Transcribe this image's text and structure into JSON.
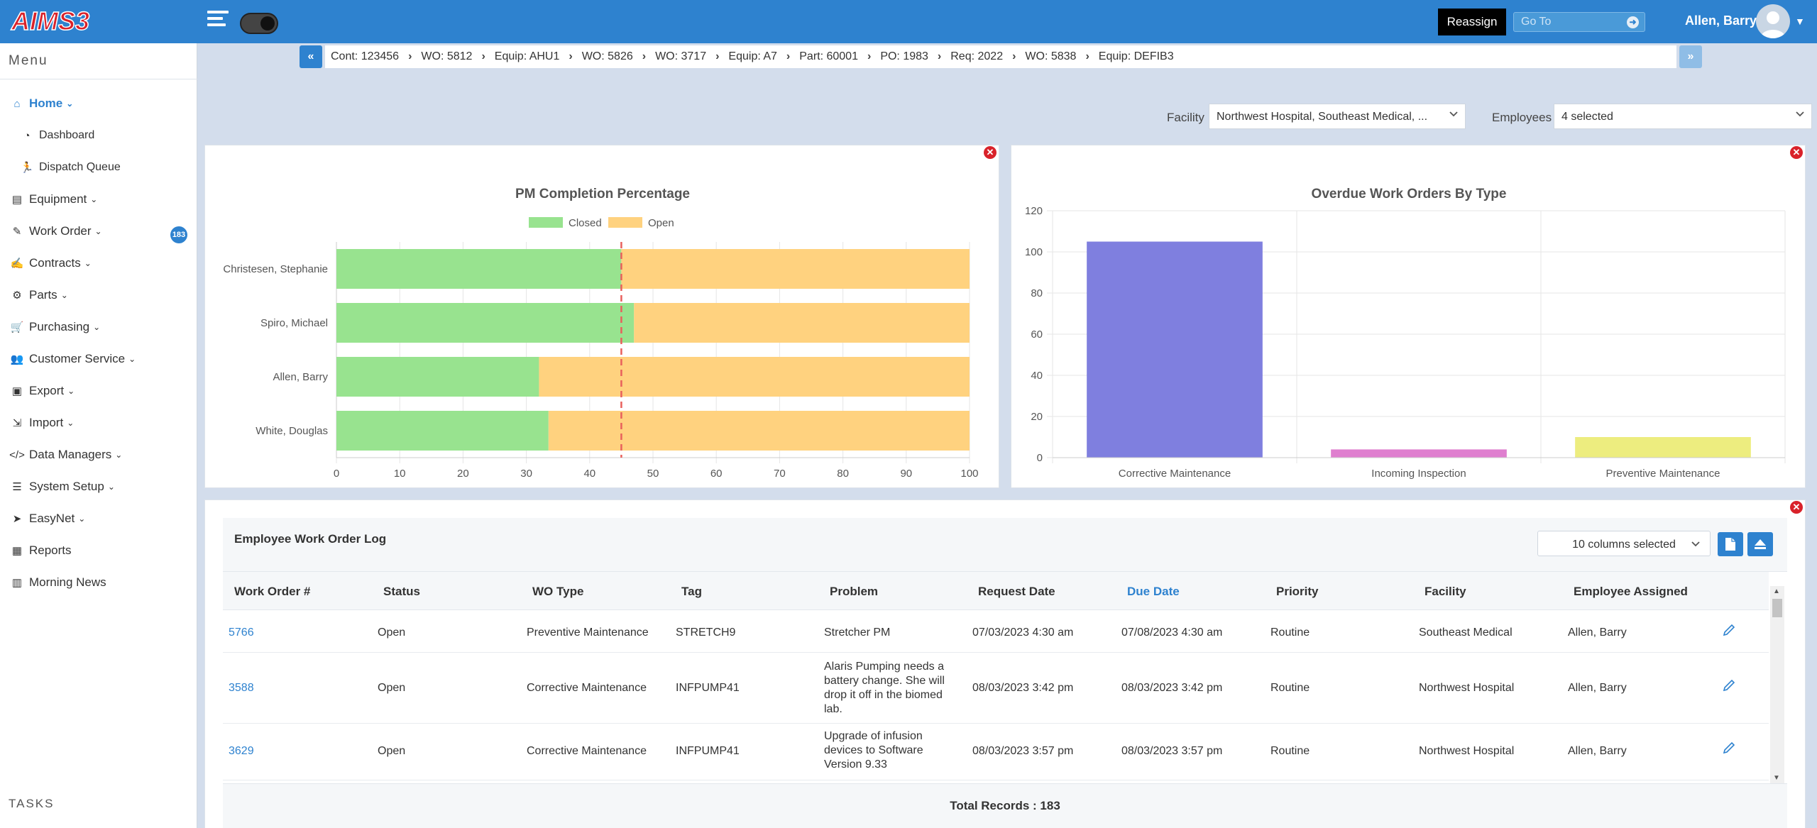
{
  "app": {
    "logo_text": "AIMS3",
    "reassign_label": "Reassign",
    "goto_placeholder": "Go To",
    "user_name": "Allen, Barry"
  },
  "sidebar": {
    "menu_title": "Menu",
    "tasks_title": "TASKS",
    "items": [
      {
        "label": "Home",
        "icon": "home-icon"
      },
      {
        "label": "Dashboard",
        "icon": "dashboard-icon"
      },
      {
        "label": "Dispatch Queue",
        "icon": "running-person-icon"
      },
      {
        "label": "Equipment",
        "icon": "equipment-icon"
      },
      {
        "label": "Work Order",
        "icon": "edit-icon",
        "badge": "183"
      },
      {
        "label": "Contracts",
        "icon": "contract-icon"
      },
      {
        "label": "Parts",
        "icon": "cogs-icon"
      },
      {
        "label": "Purchasing",
        "icon": "cart-icon"
      },
      {
        "label": "Customer Service",
        "icon": "users-icon"
      },
      {
        "label": "Export",
        "icon": "export-icon"
      },
      {
        "label": "Import",
        "icon": "import-icon"
      },
      {
        "label": "Data Managers",
        "icon": "code-icon"
      },
      {
        "label": "System Setup",
        "icon": "list-icon"
      },
      {
        "label": "EasyNet",
        "icon": "paper-plane-icon"
      },
      {
        "label": "Reports",
        "icon": "report-icon"
      },
      {
        "label": "Morning News",
        "icon": "newspaper-icon"
      }
    ]
  },
  "breadcrumb": [
    "Cont: 123456",
    "WO: 5812",
    "Equip: AHU1",
    "WO: 5826",
    "WO: 3717",
    "Equip: A7",
    "Part: 60001",
    "PO: 1983",
    "Req: 2022",
    "WO: 5838",
    "Equip: DEFIB3"
  ],
  "filters": {
    "facility_label": "Facility",
    "facility_value": "Northwest Hospital, Southeast Medical, ...",
    "employees_label": "Employees",
    "employees_value": "4 selected"
  },
  "colors": {
    "brand_blue": "#2e82cf",
    "closed_green": "#98e38f",
    "open_orange": "#ffd27f",
    "target_line": "#e8605c",
    "corrective_bar": "#7f7fdf",
    "incoming_bar": "#df7fcf",
    "preventive_bar": "#eded7f"
  },
  "chart_data": [
    {
      "type": "bar",
      "orientation": "horizontal",
      "stacked": true,
      "title": "PM Completion Percentage",
      "categories": [
        "Christesen, Stephanie",
        "Spiro, Michael",
        "Allen, Barry",
        "White, Douglas"
      ],
      "series": [
        {
          "name": "Closed",
          "values": [
            45,
            47,
            32,
            33.5
          ]
        },
        {
          "name": "Open",
          "values": [
            55,
            53,
            68,
            66.5
          ]
        }
      ],
      "xlim": [
        0,
        100
      ],
      "xticks": [
        0,
        10,
        20,
        30,
        40,
        50,
        60,
        70,
        80,
        90,
        100
      ],
      "target_line": 45,
      "legend": "top-center",
      "grid": true
    },
    {
      "type": "bar",
      "title": "Overdue Work Orders By Type",
      "categories": [
        "Corrective Maintenance",
        "Incoming Inspection",
        "Preventive Maintenance"
      ],
      "values": [
        105,
        4,
        10
      ],
      "ylim": [
        0,
        120
      ],
      "yticks": [
        0,
        20,
        40,
        60,
        80,
        100,
        120
      ],
      "grid": true
    }
  ],
  "log": {
    "title": "Employee Work Order Log",
    "columns_selected": "10 columns selected",
    "headers": [
      "Work Order #",
      "Status",
      "WO Type",
      "Tag",
      "Problem",
      "Request Date",
      "Due Date",
      "Priority",
      "Facility",
      "Employee Assigned"
    ],
    "rows": [
      {
        "wo": "5766",
        "status": "Open",
        "type": "Preventive Maintenance",
        "tag": "STRETCH9",
        "problem": [
          "Stretcher PM"
        ],
        "request": "07/03/2023 4:30 am",
        "due": "07/08/2023 4:30 am",
        "priority": "Routine",
        "facility": "Southeast Medical",
        "employee": "Allen, Barry"
      },
      {
        "wo": "3588",
        "status": "Open",
        "type": "Corrective Maintenance",
        "tag": "INFPUMP41",
        "problem": [
          "Alaris Pumping needs a",
          "battery change. She will",
          "drop it off in the biomed",
          "lab."
        ],
        "request": "08/03/2023 3:42 pm",
        "due": "08/03/2023 3:42 pm",
        "priority": "Routine",
        "facility": "Northwest Hospital",
        "employee": "Allen, Barry"
      },
      {
        "wo": "3629",
        "status": "Open",
        "type": "Corrective Maintenance",
        "tag": "INFPUMP41",
        "problem": [
          "Upgrade of infusion",
          "devices to Software",
          "Version 9.33"
        ],
        "request": "08/03/2023 3:57 pm",
        "due": "08/03/2023 3:57 pm",
        "priority": "Routine",
        "facility": "Northwest Hospital",
        "employee": "Allen, Barry"
      }
    ],
    "total_label": "Total Records :",
    "total_value": "183"
  }
}
